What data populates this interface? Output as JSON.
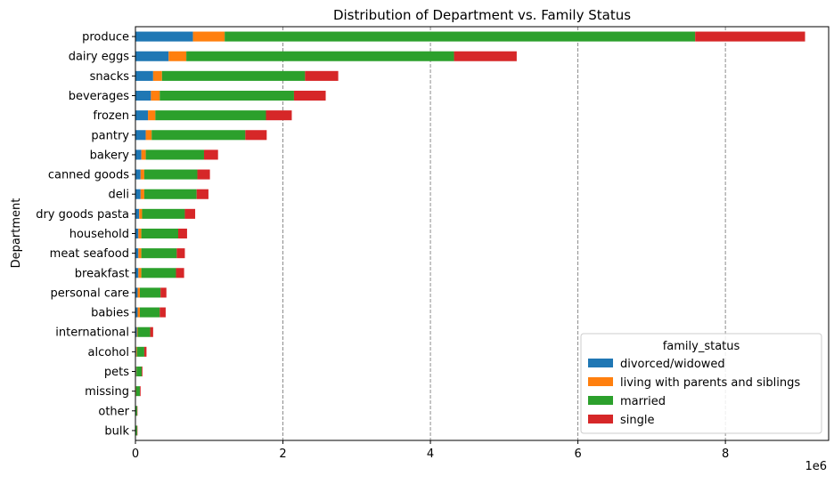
{
  "chart_data": {
    "type": "bar",
    "orientation": "horizontal",
    "stacked": true,
    "title": "Distribution of Department vs. Family Status",
    "xlabel": "",
    "ylabel": "Department",
    "x_offset_label": "1e6",
    "xlim": [
      0,
      9.4
    ],
    "xticks": [
      0,
      2,
      4,
      6,
      8
    ],
    "grid": "x, dashed",
    "legend_title": "family_status",
    "legend_position": "lower right",
    "categories": [
      "produce",
      "dairy eggs",
      "snacks",
      "beverages",
      "frozen",
      "pantry",
      "bakery",
      "canned goods",
      "deli",
      "dry goods pasta",
      "household",
      "meat seafood",
      "breakfast",
      "personal care",
      "babies",
      "international",
      "alcohol",
      "pets",
      "missing",
      "other",
      "bulk"
    ],
    "series": [
      {
        "name": "divorced/widowed",
        "color": "#1f77b4",
        "values": [
          0.78,
          0.45,
          0.24,
          0.21,
          0.17,
          0.14,
          0.08,
          0.07,
          0.07,
          0.05,
          0.04,
          0.04,
          0.04,
          0.03,
          0.03,
          0.02,
          0.01,
          0.01,
          0.005,
          0.002,
          0.002
        ]
      },
      {
        "name": "living with parents and siblings",
        "color": "#ff7f0e",
        "values": [
          0.43,
          0.24,
          0.12,
          0.12,
          0.1,
          0.08,
          0.06,
          0.05,
          0.05,
          0.04,
          0.04,
          0.04,
          0.04,
          0.03,
          0.03,
          0.01,
          0.01,
          0.005,
          0.005,
          0.001,
          0.001
        ]
      },
      {
        "name": "married",
        "color": "#2ca02c",
        "values": [
          6.38,
          3.63,
          1.94,
          1.82,
          1.5,
          1.27,
          0.79,
          0.72,
          0.71,
          0.58,
          0.5,
          0.48,
          0.47,
          0.28,
          0.27,
          0.17,
          0.1,
          0.07,
          0.05,
          0.02,
          0.02
        ]
      },
      {
        "name": "single",
        "color": "#d62728",
        "values": [
          1.49,
          0.85,
          0.45,
          0.43,
          0.35,
          0.29,
          0.19,
          0.17,
          0.16,
          0.14,
          0.12,
          0.11,
          0.11,
          0.08,
          0.08,
          0.04,
          0.03,
          0.01,
          0.01,
          0.005,
          0.005
        ]
      }
    ]
  }
}
